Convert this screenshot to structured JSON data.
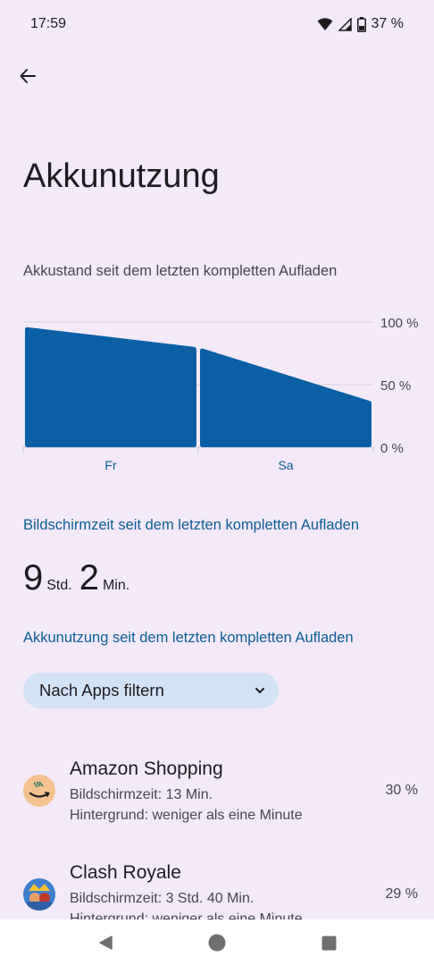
{
  "status_bar": {
    "time": "17:59",
    "battery_percent": "37 %"
  },
  "header": {
    "title": "Akkunutzung"
  },
  "chart_section": {
    "caption": "Akkustand seit dem letzten kompletten Aufladen"
  },
  "chart_data": {
    "type": "area",
    "title": "",
    "xlabel": "",
    "ylabel": "",
    "categories": [
      "Fr",
      "Sa"
    ],
    "y_ticks": [
      "100 %",
      "50 %",
      "0 %"
    ],
    "ylim": [
      0,
      100
    ],
    "series": [
      {
        "values": [
          {
            "x": 0,
            "y": 96
          },
          {
            "x": 0.5,
            "y": 80
          }
        ]
      },
      {
        "values": [
          {
            "x": 0.5,
            "y": 79
          },
          {
            "x": 1,
            "y": 37
          }
        ]
      }
    ],
    "color": "#0b5fa5",
    "grid": true
  },
  "screen_time": {
    "heading": "Bildschirmzeit seit dem letzten kompletten Aufladen",
    "hours_value": "9",
    "hours_unit": "Std.",
    "minutes_value": "2",
    "minutes_unit": "Min."
  },
  "usage": {
    "heading": "Akkunutzung seit dem letzten kompletten Aufladen",
    "filter_label": "Nach Apps filtern"
  },
  "apps": [
    {
      "name": "Amazon Shopping",
      "screen_time": "Bildschirmzeit: 13 Min.",
      "background": "Hintergrund: weniger als eine Minute",
      "percent": "30 %",
      "icon": "amazon-icon"
    },
    {
      "name": "Clash Royale",
      "screen_time": "Bildschirmzeit: 3 Std. 40 Min.",
      "background": "Hintergrund: weniger als eine Minute",
      "percent": "29 %",
      "icon": "clash-royale-icon"
    }
  ],
  "colors": {
    "accent": "#0b5d95",
    "chart": "#0b5fa5",
    "chip": "#d2e2f7",
    "background": "#f3e9f8"
  }
}
